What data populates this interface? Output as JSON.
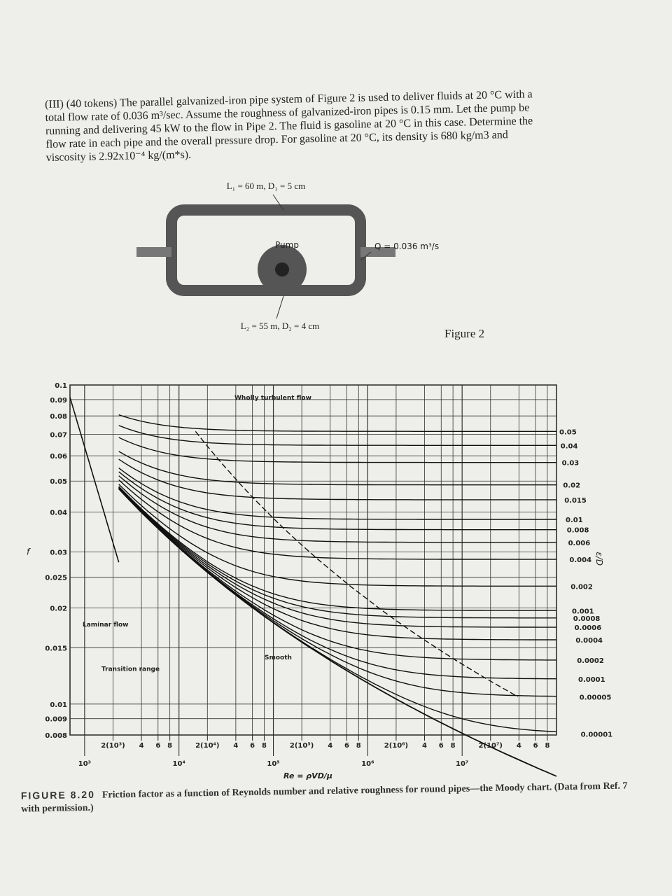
{
  "problem": {
    "text": "(III) (40 tokens) The parallel galvanized-iron pipe system of Figure 2 is used to deliver fluids at 20 °C with a total flow rate of 0.036 m³/sec. Assume the roughness of galvanized-iron pipes is 0.15 mm. Let the pump be running and delivering 45 kW to the flow in Pipe 2. The fluid is gasoline at 20 °C in this case. Determine the flow rate in each pipe and the overall pressure drop. For gasoline at 20 °C, its density is 680 kg/m3 and viscosity is 2.92x10⁻⁴ kg/(m*s)."
  },
  "figure2": {
    "pipe1_label": "L₁ = 60 m, D₁ = 5 cm",
    "pump_label": "Pump",
    "flow_label": "Q = 0.036 m³/s",
    "pipe2_label": "L₂ = 55 m, D₂ = 4 cm",
    "caption": "Figure 2"
  },
  "chart_data": {
    "type": "moody",
    "ylabel": "f",
    "xlabel": "Re = ρVD/μ",
    "y2label": "ε/D",
    "log_x": true,
    "log_y": true,
    "grid": true,
    "xlim": [
      700,
      100000000
    ],
    "ylim": [
      0.008,
      0.1
    ],
    "yticks": [
      0.008,
      0.009,
      0.01,
      0.015,
      0.02,
      0.025,
      0.03,
      0.04,
      0.05,
      0.06,
      0.07,
      0.08,
      0.09,
      0.1
    ],
    "xticks": [
      {
        "value": 1000,
        "label": "10³"
      },
      {
        "value": 2000,
        "label": "2(10³)"
      },
      {
        "value": 4000,
        "label": "4"
      },
      {
        "value": 6000,
        "label": "6"
      },
      {
        "value": 8000,
        "label": "8"
      },
      {
        "value": 10000,
        "label": "10⁴"
      },
      {
        "value": 20000,
        "label": "2(10⁴)"
      },
      {
        "value": 40000,
        "label": "4"
      },
      {
        "value": 60000,
        "label": "6"
      },
      {
        "value": 80000,
        "label": "8"
      },
      {
        "value": 100000,
        "label": "10⁵"
      },
      {
        "value": 200000,
        "label": "2(10⁵)"
      },
      {
        "value": 400000,
        "label": "4"
      },
      {
        "value": 600000,
        "label": "6"
      },
      {
        "value": 800000,
        "label": "8"
      },
      {
        "value": 1000000,
        "label": "10⁶"
      },
      {
        "value": 2000000,
        "label": "2(10⁶)"
      },
      {
        "value": 4000000,
        "label": "4"
      },
      {
        "value": 6000000,
        "label": "6"
      },
      {
        "value": 8000000,
        "label": "8"
      },
      {
        "value": 10000000,
        "label": "10⁷"
      },
      {
        "value": 20000000,
        "label": "2(10⁷)"
      },
      {
        "value": 40000000,
        "label": "4"
      },
      {
        "value": 60000000,
        "label": "6"
      },
      {
        "value": 80000000,
        "label": "8"
      }
    ],
    "roughness": [
      0.05,
      0.04,
      0.03,
      0.02,
      0.015,
      0.01,
      0.008,
      0.006,
      0.004,
      0.002,
      0.001,
      0.0008,
      0.0006,
      0.0004,
      0.0002,
      0.0001,
      5e-05,
      1e-05
    ],
    "annotations": {
      "wholly_turbulent": "Wholly turbulent flow",
      "laminar": "Laminar flow",
      "transition": "Transition range",
      "smooth": "Smooth"
    }
  },
  "caption": {
    "label": "FIGURE 8.20",
    "text": "Friction factor as a function of Reynolds number and relative roughness for round pipes—the Moody chart. (Data from Ref. 7 with permission.)"
  }
}
